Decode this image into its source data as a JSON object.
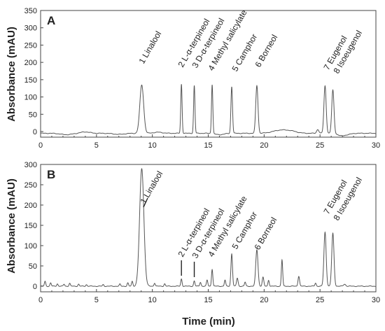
{
  "x_axis_title": "Time (min)",
  "y_axis_title": "Absorbance (mAU)",
  "chart_data": [
    {
      "type": "line",
      "panel": "A",
      "xlabel": "Time (min)",
      "ylabel": "Absorbance (mAU)",
      "xlim": [
        0,
        30
      ],
      "ylim": [
        0,
        350
      ],
      "xticks": [
        0,
        5,
        10,
        15,
        20,
        25,
        30
      ],
      "yticks": [
        0,
        50,
        100,
        150,
        200,
        250,
        300,
        350
      ],
      "baseline": -5,
      "baseline_features": [
        {
          "x": 2.3,
          "y": -9,
          "w": 0.5
        },
        {
          "x": 4.0,
          "y": -1,
          "w": 0.4
        },
        {
          "x": 7.0,
          "y": -8,
          "w": 0.5
        },
        {
          "x": 10.5,
          "y": -2,
          "w": 0.4
        },
        {
          "x": 16.0,
          "y": -9,
          "w": 0.4
        },
        {
          "x": 21.5,
          "y": 4,
          "w": 0.7
        },
        {
          "x": 22.5,
          "y": -1,
          "w": 0.5
        },
        {
          "x": 24.8,
          "y": 6,
          "w": 0.1
        },
        {
          "x": 26.9,
          "y": -12,
          "w": 0.3
        },
        {
          "x": 27.5,
          "y": -8,
          "w": 0.3
        }
      ],
      "peaks": [
        {
          "num": "1",
          "name": "Linalool",
          "x": 9.05,
          "y": 135,
          "w": 0.17
        },
        {
          "num": "2",
          "name": "L-α-terpineol",
          "x": 12.6,
          "y": 137,
          "w": 0.06
        },
        {
          "num": "3",
          "name": "D-α-terpineol",
          "x": 13.75,
          "y": 133,
          "w": 0.06
        },
        {
          "num": "4",
          "name": "Methyl salicylate",
          "x": 15.35,
          "y": 137,
          "w": 0.06
        },
        {
          "num": "5",
          "name": "Camphor",
          "x": 17.1,
          "y": 130,
          "w": 0.07
        },
        {
          "num": "6",
          "name": "Borneol",
          "x": 19.35,
          "y": 133,
          "w": 0.1
        },
        {
          "num": "7",
          "name": "Eugenol",
          "x": 25.45,
          "y": 132,
          "w": 0.1
        },
        {
          "num": "8",
          "name": "Isoeugenol",
          "x": 26.15,
          "y": 120,
          "w": 0.1
        }
      ]
    },
    {
      "type": "line",
      "panel": "B",
      "xlabel": "Time (min)",
      "ylabel": "Absorbance (mAU)",
      "xlim": [
        0,
        30
      ],
      "ylim": [
        0,
        300
      ],
      "xticks": [
        0,
        5,
        10,
        15,
        20,
        25,
        30
      ],
      "yticks": [
        0,
        50,
        100,
        150,
        200,
        250,
        300
      ],
      "baseline": 0,
      "baseline_features": [
        {
          "x": 0.4,
          "y": 12,
          "w": 0.06
        },
        {
          "x": 0.9,
          "y": 8,
          "w": 0.06
        },
        {
          "x": 1.5,
          "y": 6,
          "w": 0.06
        },
        {
          "x": 2.1,
          "y": 5,
          "w": 0.06
        },
        {
          "x": 2.6,
          "y": 7,
          "w": 0.06
        },
        {
          "x": 3.4,
          "y": 5,
          "w": 0.06
        },
        {
          "x": 4.1,
          "y": 4,
          "w": 0.06
        },
        {
          "x": 5.6,
          "y": 4,
          "w": 0.06
        },
        {
          "x": 7.1,
          "y": 5,
          "w": 0.06
        },
        {
          "x": 7.8,
          "y": 8,
          "w": 0.06
        },
        {
          "x": 8.2,
          "y": 12,
          "w": 0.06
        },
        {
          "x": 10.2,
          "y": 8,
          "w": 0.06
        },
        {
          "x": 11.1,
          "y": 6,
          "w": 0.06
        },
        {
          "x": 14.3,
          "y": 10,
          "w": 0.06
        },
        {
          "x": 14.9,
          "y": 15,
          "w": 0.06
        },
        {
          "x": 16.5,
          "y": 15,
          "w": 0.06
        },
        {
          "x": 17.6,
          "y": 20,
          "w": 0.07
        },
        {
          "x": 18.3,
          "y": 10,
          "w": 0.06
        },
        {
          "x": 19.9,
          "y": 22,
          "w": 0.07
        },
        {
          "x": 20.4,
          "y": 15,
          "w": 0.06
        },
        {
          "x": 21.6,
          "y": 65,
          "w": 0.06
        },
        {
          "x": 23.1,
          "y": 25,
          "w": 0.07
        },
        {
          "x": 24.6,
          "y": 8,
          "w": 0.06
        },
        {
          "x": 27.2,
          "y": 5,
          "w": 0.1
        }
      ],
      "peaks": [
        {
          "num": "1",
          "name": "Linalool",
          "x": 9.05,
          "y": 290,
          "w": 0.19
        },
        {
          "num": "2",
          "name": "L-α-terpineol",
          "x": 12.6,
          "y": 18,
          "w": 0.06
        },
        {
          "num": "3",
          "name": "D-α-terpineol",
          "x": 13.75,
          "y": 13,
          "w": 0.06
        },
        {
          "num": "4",
          "name": "Methyl salicylate",
          "x": 15.35,
          "y": 42,
          "w": 0.06
        },
        {
          "num": "5",
          "name": "Camphor",
          "x": 17.1,
          "y": 80,
          "w": 0.07
        },
        {
          "num": "6",
          "name": "Borneol",
          "x": 19.35,
          "y": 90,
          "w": 0.1
        },
        {
          "num": "7",
          "name": "Eugenol",
          "x": 25.45,
          "y": 133,
          "w": 0.1
        },
        {
          "num": "8",
          "name": "Isoeugenol",
          "x": 26.15,
          "y": 130,
          "w": 0.1
        }
      ]
    }
  ]
}
